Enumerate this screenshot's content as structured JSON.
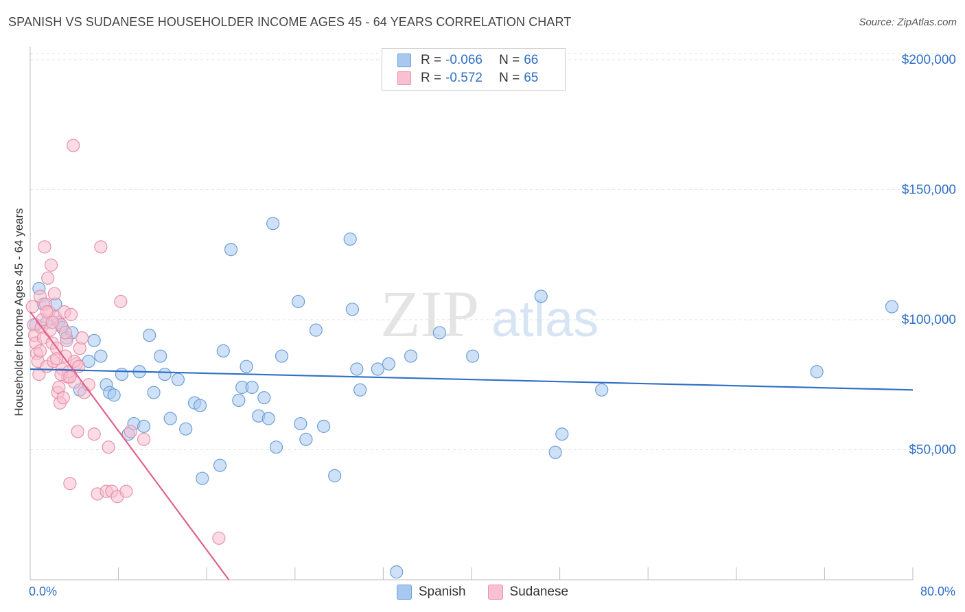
{
  "title": "SPANISH VS SUDANESE HOUSEHOLDER INCOME AGES 45 - 64 YEARS CORRELATION CHART",
  "source": "Source: ZipAtlas.com",
  "watermark": {
    "zip": "ZIP",
    "atlas": "atlas"
  },
  "legend": {
    "rows": [
      {
        "label": "R =",
        "r": "-0.066",
        "n_label": "N =",
        "n": "66",
        "color": "#a8c8f0",
        "border": "#6a9fd8"
      },
      {
        "label": "R =",
        "r": "-0.572",
        "n_label": "N =",
        "n": "65",
        "color": "#f8c0d0",
        "border": "#e890aa"
      }
    ]
  },
  "bottom_legend": [
    {
      "name": "Spanish",
      "color": "#a8c8f0",
      "border": "#6a9fd8"
    },
    {
      "name": "Sudanese",
      "color": "#f8c0d0",
      "border": "#e890aa"
    }
  ],
  "x_tick_left": "0.0%",
  "x_tick_right": "80.0%",
  "chart_data": {
    "type": "scatter",
    "title": "SPANISH VS SUDANESE HOUSEHOLDER INCOME AGES 45 - 64 YEARS CORRELATION CHART",
    "xlabel": "",
    "ylabel": "Householder Income Ages 45 - 64 years",
    "xlim": [
      0,
      80
    ],
    "ylim": [
      0,
      205000
    ],
    "y_ticks": [
      {
        "value": 50000,
        "label": "$50,000"
      },
      {
        "value": 100000,
        "label": "$100,000"
      },
      {
        "value": 150000,
        "label": "$150,000"
      },
      {
        "value": 200000,
        "label": "$200,000"
      }
    ],
    "x_minor_ticks": [
      0,
      8,
      16,
      24,
      32,
      40,
      48,
      56,
      64,
      72,
      80
    ],
    "grid": true,
    "series": [
      {
        "name": "Spanish",
        "color": "#6a9fd8",
        "fill": "#a8c8f0",
        "trend": {
          "x": [
            0,
            80
          ],
          "y": [
            81000,
            73000
          ],
          "color": "#2f6fc6"
        },
        "points": [
          [
            0.8,
            112000
          ],
          [
            1.2,
            106000
          ],
          [
            1.5,
            99000
          ],
          [
            2.3,
            106000
          ],
          [
            2.6,
            99000
          ],
          [
            2.9,
            97000
          ],
          [
            3.3,
            93000
          ],
          [
            3.8,
            95000
          ],
          [
            0.5,
            98000
          ],
          [
            4.5,
            73000
          ],
          [
            5.3,
            84000
          ],
          [
            5.8,
            92000
          ],
          [
            6.4,
            86000
          ],
          [
            6.9,
            75000
          ],
          [
            7.2,
            72000
          ],
          [
            7.6,
            71000
          ],
          [
            8.3,
            79000
          ],
          [
            8.9,
            56000
          ],
          [
            9.4,
            60000
          ],
          [
            9.9,
            80000
          ],
          [
            10.3,
            59000
          ],
          [
            10.8,
            94000
          ],
          [
            11.2,
            72000
          ],
          [
            11.8,
            86000
          ],
          [
            12.2,
            79000
          ],
          [
            12.7,
            62000
          ],
          [
            13.4,
            77000
          ],
          [
            14.1,
            58000
          ],
          [
            14.9,
            68000
          ],
          [
            15.4,
            67000
          ],
          [
            15.6,
            39000
          ],
          [
            17.2,
            44000
          ],
          [
            17.5,
            88000
          ],
          [
            18.2,
            127000
          ],
          [
            18.9,
            69000
          ],
          [
            19.2,
            74000
          ],
          [
            19.6,
            82000
          ],
          [
            20.1,
            74000
          ],
          [
            20.7,
            63000
          ],
          [
            21.2,
            70000
          ],
          [
            21.6,
            62000
          ],
          [
            22.0,
            137000
          ],
          [
            22.3,
            51000
          ],
          [
            22.8,
            86000
          ],
          [
            24.3,
            107000
          ],
          [
            24.5,
            60000
          ],
          [
            25.0,
            54000
          ],
          [
            25.9,
            96000
          ],
          [
            26.6,
            59000
          ],
          [
            27.6,
            40000
          ],
          [
            29.0,
            131000
          ],
          [
            29.2,
            104000
          ],
          [
            29.6,
            81000
          ],
          [
            29.9,
            73000
          ],
          [
            31.5,
            81000
          ],
          [
            32.5,
            83000
          ],
          [
            33.2,
            3000
          ],
          [
            34.5,
            86000
          ],
          [
            37.1,
            95000
          ],
          [
            40.1,
            86000
          ],
          [
            46.3,
            109000
          ],
          [
            47.6,
            49000
          ],
          [
            48.2,
            56000
          ],
          [
            51.8,
            73000
          ],
          [
            71.3,
            80000
          ],
          [
            78.1,
            105000
          ]
        ]
      },
      {
        "name": "Sudanese",
        "color": "#e890aa",
        "fill": "#f8c0d0",
        "trend": {
          "x": [
            0,
            18
          ],
          "y": [
            103000,
            0
          ],
          "color": "#e0608a"
        },
        "points": [
          [
            0.2,
            105000
          ],
          [
            0.3,
            98000
          ],
          [
            0.4,
            94000
          ],
          [
            0.5,
            91000
          ],
          [
            0.6,
            87000
          ],
          [
            0.7,
            84000
          ],
          [
            0.8,
            79000
          ],
          [
            0.9,
            109000
          ],
          [
            1.0,
            97000
          ],
          [
            1.1,
            100000
          ],
          [
            1.2,
            93000
          ],
          [
            1.3,
            128000
          ],
          [
            1.4,
            106000
          ],
          [
            1.5,
            82000
          ],
          [
            1.6,
            116000
          ],
          [
            1.7,
            103000
          ],
          [
            1.8,
            96000
          ],
          [
            1.9,
            121000
          ],
          [
            2.0,
            91000
          ],
          [
            2.1,
            84000
          ],
          [
            2.2,
            110000
          ],
          [
            2.3,
            101000
          ],
          [
            2.4,
            89000
          ],
          [
            2.5,
            72000
          ],
          [
            2.6,
            74000
          ],
          [
            2.7,
            68000
          ],
          [
            2.8,
            98000
          ],
          [
            2.9,
            81000
          ],
          [
            3.0,
            70000
          ],
          [
            3.1,
            103000
          ],
          [
            3.2,
            86000
          ],
          [
            3.3,
            92000
          ],
          [
            3.4,
            78000
          ],
          [
            3.5,
            80000
          ],
          [
            3.6,
            37000
          ],
          [
            3.7,
            102000
          ],
          [
            3.9,
            167000
          ],
          [
            4.0,
            76000
          ],
          [
            4.2,
            83000
          ],
          [
            4.3,
            57000
          ],
          [
            4.5,
            89000
          ],
          [
            4.7,
            93000
          ],
          [
            0.9,
            88000
          ],
          [
            1.5,
            103000
          ],
          [
            2.0,
            99000
          ],
          [
            2.4,
            85000
          ],
          [
            2.8,
            79000
          ],
          [
            3.2,
            95000
          ],
          [
            3.6,
            78000
          ],
          [
            4.0,
            84000
          ],
          [
            4.4,
            82000
          ],
          [
            4.9,
            72000
          ],
          [
            5.3,
            75000
          ],
          [
            5.8,
            56000
          ],
          [
            6.1,
            33000
          ],
          [
            6.4,
            128000
          ],
          [
            6.9,
            34000
          ],
          [
            7.1,
            51000
          ],
          [
            7.4,
            34000
          ],
          [
            7.9,
            32000
          ],
          [
            8.2,
            107000
          ],
          [
            8.7,
            34000
          ],
          [
            9.1,
            57000
          ],
          [
            10.3,
            54000
          ],
          [
            17.1,
            16000
          ]
        ]
      }
    ]
  }
}
